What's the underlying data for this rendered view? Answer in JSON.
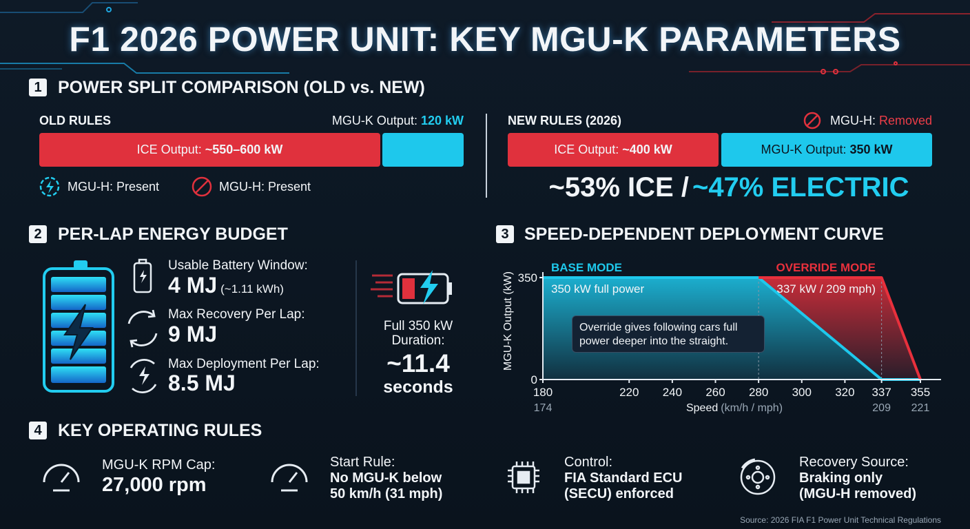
{
  "title": "F1 2026 POWER UNIT: KEY MGU-K PARAMETERS",
  "power_split": {
    "number": "1",
    "heading": "POWER SPLIT COMPARISON (OLD vs. NEW)",
    "old_rules": {
      "label": "OLD RULES",
      "mgu_k_label": "MGU-K Output:",
      "mgu_k_value": "120 kW",
      "ice_label": "ICE Output:",
      "ice_value": "~550–600 kW",
      "status": [
        "MGU-H: Present",
        "MGU-H: Present"
      ]
    },
    "new_rules": {
      "label": "NEW RULES (2026)",
      "mgu_h_label": "MGU-H:",
      "mgu_h_value": "Removed",
      "ice_label": "ICE Output:",
      "ice_value": "~400 kW",
      "mgu_k_label": "MGU-K Output:",
      "mgu_k_value": "350 kW",
      "ice_share": "~53% ICE /",
      "electric_share": "~47% ELECTRIC"
    }
  },
  "energy_budget": {
    "number": "2",
    "heading": "PER-LAP ENERGY BUDGET",
    "items": [
      {
        "label": "Usable Battery Window:",
        "value": "4 MJ",
        "note": "(~1.11 kWh)"
      },
      {
        "label": "Max Recovery Per Lap:",
        "value": "9 MJ"
      },
      {
        "label": "Max Deployment Per Lap:",
        "value": "8.5 MJ"
      }
    ],
    "duration": {
      "lines": [
        "Full 350 kW",
        "Duration:"
      ],
      "value": "~11.4",
      "unit": "seconds"
    }
  },
  "chart_data": {
    "type": "line",
    "number": "3",
    "title": "SPEED-DEPENDENT DEPLOYMENT CURVE",
    "y_label": "MGU-K Output (kW)",
    "x_label": "Speed",
    "x_label_units": "(km/h / mph)",
    "xlim": [
      180,
      355
    ],
    "ylim": [
      0,
      350
    ],
    "xticks": [
      180,
      220,
      240,
      260,
      280,
      300,
      320,
      337,
      355
    ],
    "yticks": [
      0,
      350
    ],
    "mph_ticks": [
      {
        "value": 180,
        "label": "174"
      },
      {
        "value": 337,
        "label": "209"
      },
      {
        "value": 355,
        "label": "221"
      }
    ],
    "series": [
      {
        "name": "BASE MODE",
        "color": "#1ec8ec",
        "x": [
          180,
          280,
          337,
          355
        ],
        "values": [
          350,
          350,
          0,
          0
        ]
      },
      {
        "name": "OVERRIDE MODE",
        "color": "#e8303c",
        "x": [
          280,
          337,
          355
        ],
        "values": [
          350,
          350,
          0
        ]
      }
    ],
    "annotations": [
      "350 kW full power",
      "337 kW / 209 mph)",
      "Override gives following cars full power deeper into the straight."
    ]
  },
  "operating_rules": {
    "number": "4",
    "heading": "KEY OPERATING RULES",
    "cards": [
      {
        "label": "MGU-K RPM Cap:",
        "lines": [
          "27,000 rpm"
        ]
      },
      {
        "label": "Start Rule:",
        "lines": [
          "No MGU-K below",
          "50 km/h (31 mph)"
        ]
      },
      {
        "label": "Control:",
        "lines": [
          "FIA Standard ECU",
          "(SECU) enforced"
        ]
      },
      {
        "label": "Recovery Source:",
        "lines": [
          "Braking only",
          "(MGU-H removed)"
        ]
      }
    ]
  },
  "source": "Source: 2026 FIA F1 Power Unit Technical Regulations"
}
